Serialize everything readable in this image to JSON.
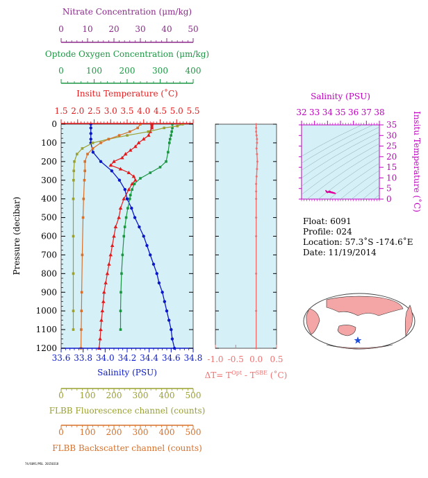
{
  "info": {
    "float": "Float:  6091",
    "profile": "Profile:  024",
    "location": "Location:  57.3˚S  -174.6˚E",
    "date": "Date:  11/19/2014"
  },
  "footer": "74/6091/MSL 20150318",
  "colors": {
    "background": "#d6f0f8",
    "nitrate": "#8b2a8b",
    "oxygen": "#1a9641",
    "temperature": "#e31a1c",
    "salinity": "#0a18c8",
    "dt": "#f07070",
    "fluorescence": "#9aa030",
    "backscatter": "#d8702a",
    "ts": "#e0009a",
    "land": "#f4a6a6"
  },
  "chart_data": [
    {
      "type": "line",
      "title": "",
      "ylabel": "Pressure (decibar)",
      "ylim": [
        0,
        1200
      ],
      "yticks": [
        "0",
        "100",
        "200",
        "300",
        "400",
        "500",
        "600",
        "700",
        "800",
        "900",
        "1000",
        "1100",
        "1200"
      ],
      "axes": [
        {
          "key": "nitrate",
          "label": "Nitrate Concentration (μm/kg)",
          "position": "top",
          "range": [
            0,
            50
          ],
          "ticks": [
            "0",
            "10",
            "20",
            "30",
            "40",
            "50"
          ]
        },
        {
          "key": "oxygen",
          "label": "Optode Oxygen Concentration (μm/kg)",
          "position": "top",
          "range": [
            0,
            400
          ],
          "ticks": [
            "0",
            "100",
            "200",
            "300",
            "400"
          ]
        },
        {
          "key": "temperature",
          "label": "Insitu Temperature (˚C)",
          "position": "top",
          "range": [
            1.5,
            5.5
          ],
          "ticks": [
            "1.5",
            "2.0",
            "2.5",
            "3.0",
            "3.5",
            "4.0",
            "4.5",
            "5.0",
            "5.5"
          ]
        },
        {
          "key": "salinity",
          "label": "Salinity (PSU)",
          "position": "bottom",
          "range": [
            33.6,
            34.8
          ],
          "ticks": [
            "33.6",
            "33.8",
            "34.0",
            "34.2",
            "34.4",
            "34.6",
            "34.8"
          ]
        },
        {
          "key": "fluorescence",
          "label": "FLBB Fluorescence channel (counts)",
          "position": "bottom",
          "range": [
            0,
            500
          ],
          "ticks": [
            "0",
            "100",
            "200",
            "300",
            "400",
            "500"
          ]
        },
        {
          "key": "backscatter",
          "label": "FLBB Backscatter channel (counts)",
          "position": "bottom",
          "range": [
            0,
            500
          ],
          "ticks": [
            "0",
            "100",
            "200",
            "300",
            "400",
            "500"
          ]
        }
      ],
      "series": [
        {
          "key": "temperature",
          "marker": "triangle",
          "p": [
            0,
            10,
            20,
            40,
            60,
            80,
            100,
            120,
            140,
            160,
            180,
            200,
            220,
            240,
            260,
            280,
            300,
            320,
            350,
            400,
            450,
            500,
            550,
            600,
            650,
            700,
            750,
            800,
            850,
            900,
            950,
            1000,
            1050,
            1100,
            1150,
            1200
          ],
          "x": [
            4.25,
            4.25,
            4.25,
            4.2,
            4.15,
            4.0,
            3.85,
            3.75,
            3.6,
            3.45,
            3.35,
            3.1,
            3.0,
            3.3,
            3.55,
            3.7,
            3.75,
            3.65,
            3.55,
            3.4,
            3.3,
            3.25,
            3.15,
            3.1,
            3.05,
            3.0,
            2.95,
            2.9,
            2.85,
            2.8,
            2.78,
            2.75,
            2.72,
            2.7,
            2.68,
            2.65
          ]
        },
        {
          "key": "salinity",
          "marker": "circle",
          "p": [
            0,
            20,
            50,
            80,
            100,
            150,
            200,
            250,
            300,
            350,
            400,
            450,
            500,
            550,
            600,
            650,
            700,
            750,
            800,
            850,
            900,
            950,
            1000,
            1050,
            1100,
            1150,
            1200
          ],
          "x": [
            33.87,
            33.87,
            33.87,
            33.87,
            33.87,
            33.89,
            33.96,
            34.06,
            34.13,
            34.18,
            34.2,
            34.24,
            34.27,
            34.31,
            34.35,
            34.38,
            34.41,
            34.44,
            34.47,
            34.49,
            34.52,
            34.54,
            34.56,
            34.58,
            34.6,
            34.61,
            34.63
          ]
        },
        {
          "key": "oxygen",
          "marker": "square",
          "p": [
            0,
            20,
            40,
            60,
            80,
            100,
            150,
            200,
            230,
            260,
            290,
            320,
            350,
            380,
            400,
            450,
            500,
            550,
            600,
            700,
            800,
            900,
            1000,
            1100
          ],
          "x": [
            337,
            337,
            335,
            333,
            330,
            328,
            324,
            318,
            300,
            270,
            240,
            222,
            215,
            210,
            208,
            202,
            197,
            193,
            190,
            186,
            183,
            181,
            180,
            180
          ]
        },
        {
          "key": "fluorescence",
          "marker": "square",
          "p": [
            0,
            10,
            20,
            40,
            60,
            80,
            100,
            130,
            160,
            200,
            250,
            300,
            400,
            600,
            800,
            1000,
            1100
          ],
          "x": [
            460,
            440,
            390,
            330,
            250,
            180,
            120,
            80,
            60,
            50,
            48,
            47,
            46,
            46,
            46,
            46,
            46
          ]
        },
        {
          "key": "backscatter",
          "marker": "square",
          "p": [
            0,
            20,
            40,
            60,
            80,
            100,
            130,
            160,
            200,
            250,
            300,
            400,
            500,
            700,
            900,
            1000,
            1100,
            1200
          ],
          "x": [
            300,
            290,
            260,
            220,
            180,
            150,
            120,
            100,
            90,
            90,
            88,
            85,
            83,
            80,
            78,
            77,
            76,
            75
          ]
        }
      ]
    },
    {
      "type": "line",
      "title": "",
      "xlabel": "ΔT= T^Opt - T^SBE (˚C)",
      "xlim": [
        -1.0,
        0.5
      ],
      "ylim": [
        0,
        1200
      ],
      "xticks": [
        "-1.0",
        "-0.5",
        "0.0",
        "0.5"
      ],
      "series": [
        {
          "key": "dt",
          "p": [
            0,
            20,
            40,
            60,
            80,
            100,
            130,
            160,
            200,
            240,
            280,
            320,
            360,
            400,
            500,
            600,
            800,
            1000,
            1200
          ],
          "x": [
            0.0,
            0.0,
            0.0,
            0.01,
            0.02,
            0.02,
            0.01,
            0.02,
            0.03,
            0.02,
            0.01,
            0.0,
            0.0,
            0.0,
            0.0,
            0.0,
            0.0,
            0.0,
            0.0
          ]
        }
      ]
    },
    {
      "type": "scatter",
      "title": "Salinity (PSU)",
      "xlabel": "Salinity (PSU)",
      "ylabel": "Insitu Temperature (˚C)",
      "xlim": [
        32,
        38
      ],
      "ylim": [
        0,
        35
      ],
      "xticks": [
        "32",
        "33",
        "34",
        "35",
        "36",
        "37",
        "38"
      ],
      "yticks": [
        "0",
        "5",
        "10",
        "15",
        "20",
        "25",
        "30",
        "35"
      ],
      "series": [
        {
          "key": "ts",
          "x": [
            33.87,
            33.88,
            33.9,
            33.95,
            34.0,
            34.05,
            34.1,
            34.15,
            34.2,
            34.25,
            34.35,
            34.45,
            34.55,
            34.63,
            34.5,
            34.3,
            34.1,
            33.95,
            33.87
          ],
          "y": [
            4.25,
            4.0,
            3.6,
            3.2,
            3.05,
            3.3,
            3.6,
            3.75,
            3.7,
            3.5,
            3.3,
            3.1,
            2.9,
            2.65,
            2.75,
            3.0,
            3.2,
            3.6,
            4.0
          ]
        }
      ]
    }
  ]
}
